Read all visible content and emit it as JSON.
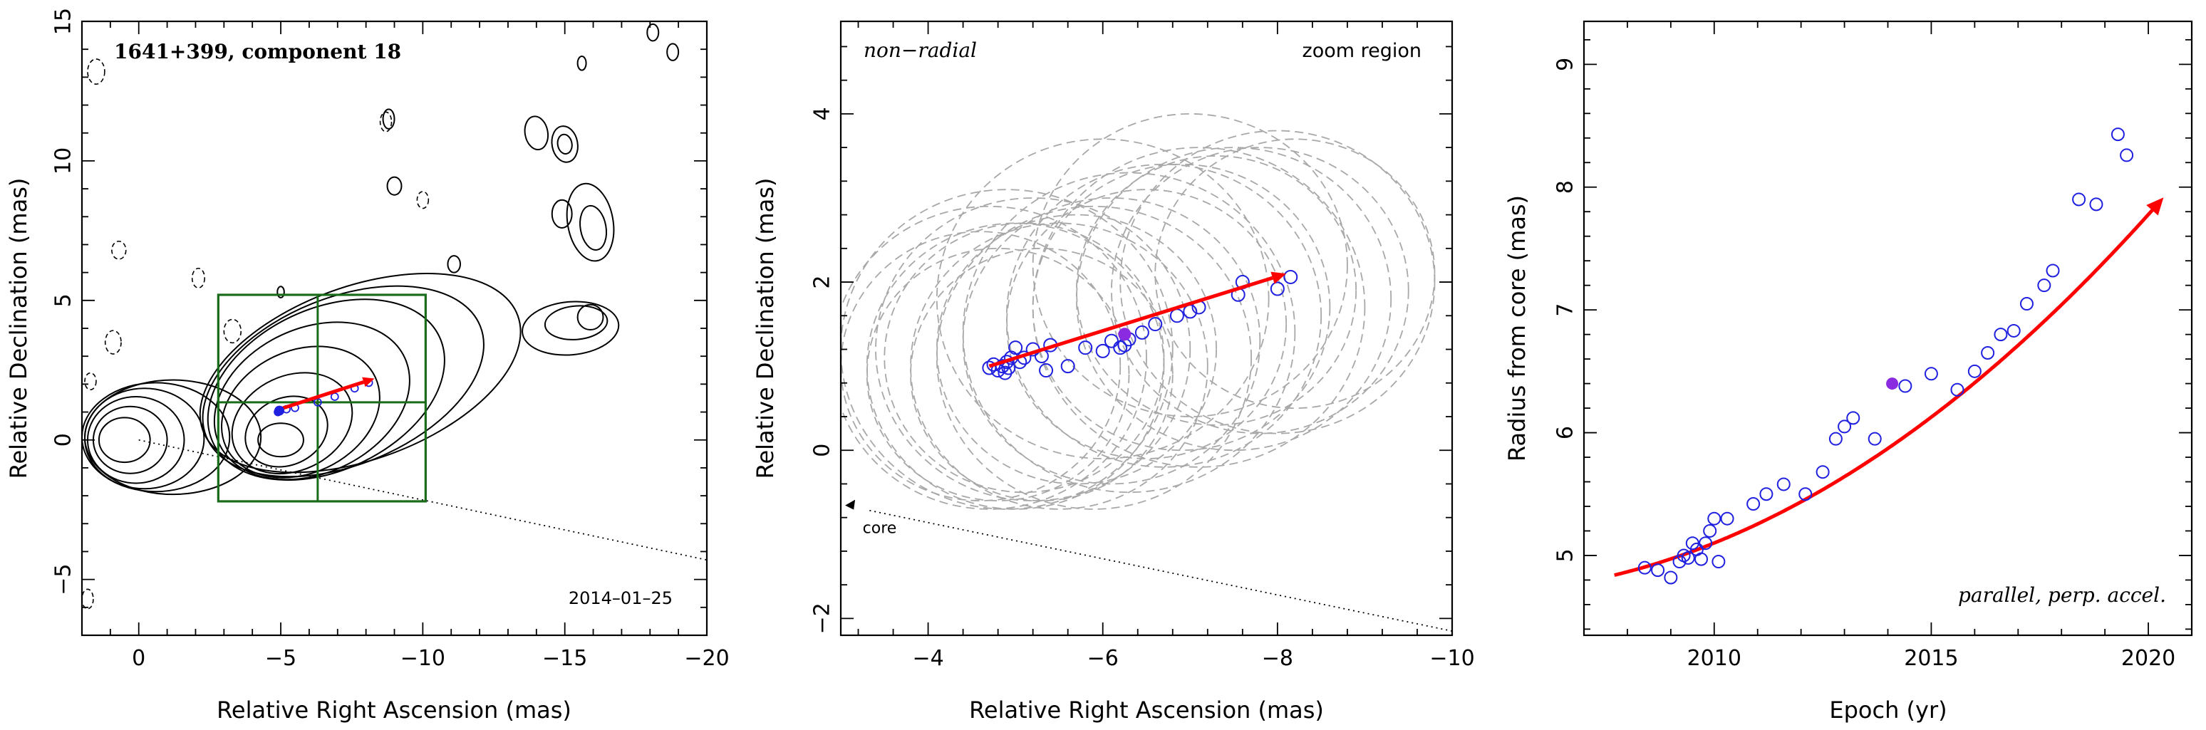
{
  "chart_data": [
    {
      "type": "contour",
      "title": "1641+399, component 18",
      "annotation": "2014–01–25",
      "xlabel": "Relative Right Ascension (mas)",
      "ylabel": "Relative Declination (mas)",
      "xlim": [
        2,
        -20
      ],
      "ylim": [
        -7,
        15
      ],
      "xticks": [
        0,
        -5,
        -10,
        -15,
        -20
      ],
      "xtick_labels": [
        "0",
        "−5",
        "−10",
        "−15",
        "−20"
      ],
      "yticks": [
        -5,
        0,
        5,
        10,
        15
      ],
      "ytick_labels": [
        "−5",
        "0",
        "5",
        "10",
        "15"
      ],
      "zoom_box": {
        "x": [
          -2.8,
          -10.1
        ],
        "y": [
          -2.2,
          5.2
        ],
        "dividers_x": [
          -6.3
        ],
        "dividers_y": [
          1.35
        ]
      },
      "direction_line": {
        "from": [
          0,
          0
        ],
        "slope": 0.215,
        "style": "dotted"
      },
      "motion_arrow": {
        "from": [
          -4.8,
          1.05
        ],
        "to": [
          -8.3,
          2.2
        ],
        "color": "#ff0000"
      },
      "component_points": [
        [
          -4.9,
          1.0
        ],
        [
          -5.2,
          1.1
        ],
        [
          -5.5,
          1.15
        ],
        [
          -6.3,
          1.35
        ],
        [
          -6.9,
          1.55
        ],
        [
          -7.6,
          1.85
        ],
        [
          -8.1,
          2.05
        ]
      ],
      "highlight_point": [
        -6.3,
        1.35
      ],
      "contours": [
        {
          "cx": 0.5,
          "cy": 0,
          "rx": 0.9,
          "ry": 0.8,
          "rot": 0
        },
        {
          "cx": 0.3,
          "cy": 0,
          "rx": 1.3,
          "ry": 1.2,
          "rot": 0
        },
        {
          "cx": 0.1,
          "cy": 0,
          "rx": 1.7,
          "ry": 1.55,
          "rot": 0
        },
        {
          "cx": -0.2,
          "cy": 0.05,
          "rx": 2.1,
          "ry": 1.8,
          "rot": 0
        },
        {
          "cx": -0.6,
          "cy": 0.1,
          "rx": 2.6,
          "ry": 1.95,
          "rot": 0
        },
        {
          "cx": -1.2,
          "cy": 0.1,
          "rx": 3.1,
          "ry": 2.05,
          "rot": 0
        },
        {
          "cx": -5.0,
          "cy": 0.0,
          "rx": 0.8,
          "ry": 0.6,
          "rot": 0
        },
        {
          "cx": -5.2,
          "cy": 0.3,
          "rx": 1.5,
          "ry": 1.2,
          "rot": 25
        },
        {
          "cx": -5.4,
          "cy": 0.6,
          "rx": 2.2,
          "ry": 1.7,
          "rot": 25
        },
        {
          "cx": -5.7,
          "cy": 1.0,
          "rx": 2.9,
          "ry": 2.2,
          "rot": 25
        },
        {
          "cx": -6.1,
          "cy": 1.4,
          "rx": 3.6,
          "ry": 2.6,
          "rot": 25
        },
        {
          "cx": -6.6,
          "cy": 1.8,
          "rx": 4.4,
          "ry": 2.9,
          "rot": 25
        },
        {
          "cx": -7.2,
          "cy": 2.1,
          "rx": 5.2,
          "ry": 3.0,
          "rot": 22
        },
        {
          "cx": -7.8,
          "cy": 2.4,
          "rx": 5.9,
          "ry": 3.1,
          "rot": 20
        },
        {
          "cx": -14.0,
          "cy": 11.0,
          "rx": 0.4,
          "ry": 0.6,
          "rot": 10
        },
        {
          "cx": -15.0,
          "cy": 10.6,
          "rx": 0.45,
          "ry": 0.65,
          "rot": 10
        },
        {
          "cx": -15.0,
          "cy": 10.6,
          "rx": 0.25,
          "ry": 0.35,
          "rot": 10
        },
        {
          "cx": -14.9,
          "cy": 8.1,
          "rx": 0.35,
          "ry": 0.5,
          "rot": 0
        },
        {
          "cx": -15.9,
          "cy": 7.8,
          "rx": 0.8,
          "ry": 1.4,
          "rot": 10
        },
        {
          "cx": -16.0,
          "cy": 7.6,
          "rx": 0.45,
          "ry": 0.8,
          "rot": 10
        },
        {
          "cx": -15.9,
          "cy": 4.4,
          "rx": 0.45,
          "ry": 0.45,
          "rot": 0
        },
        {
          "cx": -15.4,
          "cy": 4.2,
          "rx": 1.1,
          "ry": 0.6,
          "rot": 5
        },
        {
          "cx": -15.2,
          "cy": 4.0,
          "rx": 1.7,
          "ry": 0.95,
          "rot": 5
        },
        {
          "cx": -15.6,
          "cy": 13.5,
          "rx": 0.15,
          "ry": 0.25,
          "rot": 0
        },
        {
          "cx": -18.1,
          "cy": 14.6,
          "rx": 0.2,
          "ry": 0.3,
          "rot": 0
        },
        {
          "cx": -18.8,
          "cy": 13.9,
          "rx": 0.2,
          "ry": 0.3,
          "rot": 0
        },
        {
          "cx": -9.0,
          "cy": 9.1,
          "rx": 0.25,
          "ry": 0.32,
          "rot": 0
        },
        {
          "cx": -11.1,
          "cy": 6.3,
          "rx": 0.22,
          "ry": 0.3,
          "rot": 0
        },
        {
          "cx": -8.8,
          "cy": 11.5,
          "rx": 0.2,
          "ry": 0.35,
          "rot": 0
        },
        {
          "cx": -5.0,
          "cy": 5.3,
          "rx": 0.12,
          "ry": 0.2,
          "rot": 0
        }
      ],
      "negative_contours": [
        {
          "cx": 1.5,
          "cy": 13.2,
          "rx": 0.3,
          "ry": 0.45
        },
        {
          "cx": 0.7,
          "cy": 6.8,
          "rx": 0.25,
          "ry": 0.32
        },
        {
          "cx": 0.9,
          "cy": 3.5,
          "rx": 0.28,
          "ry": 0.42
        },
        {
          "cx": 1.7,
          "cy": 2.1,
          "rx": 0.2,
          "ry": 0.3
        },
        {
          "cx": -2.1,
          "cy": 5.8,
          "rx": 0.22,
          "ry": 0.35
        },
        {
          "cx": -3.3,
          "cy": 3.9,
          "rx": 0.3,
          "ry": 0.42
        },
        {
          "cx": -10.0,
          "cy": 8.6,
          "rx": 0.2,
          "ry": 0.3
        },
        {
          "cx": -8.7,
          "cy": 11.4,
          "rx": 0.2,
          "ry": 0.35
        },
        {
          "cx": 1.8,
          "cy": -5.7,
          "rx": 0.2,
          "ry": 0.35
        }
      ]
    },
    {
      "type": "scatter",
      "title": "zoom region",
      "label_left": "non−radial",
      "core_label": "core",
      "xlabel": "Relative Right Ascension (mas)",
      "ylabel": "Relative Declination (mas)",
      "xlim": [
        -3,
        -10
      ],
      "ylim": [
        -2.2,
        5.1
      ],
      "xticks": [
        -4,
        -6,
        -8,
        -10
      ],
      "xtick_labels": [
        "−4",
        "−6",
        "−8",
        "−10"
      ],
      "yticks": [
        -2,
        0,
        2,
        4
      ],
      "ytick_labels": [
        "−2",
        "0",
        "2",
        "4"
      ],
      "direction_line": {
        "slope": 0.215,
        "style": "dotted"
      },
      "motion_arrow": {
        "from": [
          -4.7,
          1.0
        ],
        "to": [
          -8.1,
          2.1
        ],
        "color": "#ff0000"
      },
      "highlight_point": [
        -6.25,
        1.38
      ],
      "points_x": [
        -4.7,
        -4.75,
        -4.8,
        -4.85,
        -4.88,
        -4.9,
        -4.92,
        -4.95,
        -5.0,
        -5.05,
        -5.1,
        -5.2,
        -5.3,
        -5.35,
        -5.4,
        -5.6,
        -5.8,
        -6.0,
        -6.1,
        -6.2,
        -6.25,
        -6.3,
        -6.45,
        -6.6,
        -6.85,
        -7.0,
        -7.1,
        -7.55,
        -7.6,
        -8.0,
        -8.15
      ],
      "points_y": [
        0.98,
        1.02,
        0.95,
        1.0,
        0.92,
        1.05,
        0.98,
        1.1,
        1.22,
        1.05,
        1.1,
        1.2,
        1.12,
        0.95,
        1.25,
        1.0,
        1.22,
        1.18,
        1.3,
        1.22,
        1.25,
        1.32,
        1.4,
        1.5,
        1.6,
        1.65,
        1.7,
        1.85,
        2.0,
        1.92,
        2.06
      ],
      "error_circles": [
        {
          "x": -4.6,
          "y": 1.0,
          "r": 1.6
        },
        {
          "x": -4.7,
          "y": 1.1,
          "r": 1.8
        },
        {
          "x": -4.8,
          "y": 0.9,
          "r": 1.5
        },
        {
          "x": -4.9,
          "y": 1.2,
          "r": 1.9
        },
        {
          "x": -5.0,
          "y": 1.0,
          "r": 1.7
        },
        {
          "x": -5.1,
          "y": 1.1,
          "r": 1.6
        },
        {
          "x": -5.2,
          "y": 1.2,
          "r": 1.8
        },
        {
          "x": -5.3,
          "y": 0.9,
          "r": 1.5
        },
        {
          "x": -5.5,
          "y": 1.0,
          "r": 1.7
        },
        {
          "x": -5.7,
          "y": 1.2,
          "r": 1.6
        },
        {
          "x": -5.9,
          "y": 1.1,
          "r": 1.8
        },
        {
          "x": -6.1,
          "y": 1.3,
          "r": 1.7
        },
        {
          "x": -6.3,
          "y": 1.4,
          "r": 1.9
        },
        {
          "x": -6.5,
          "y": 1.5,
          "r": 1.6
        },
        {
          "x": -6.7,
          "y": 1.6,
          "r": 1.8
        },
        {
          "x": -6.9,
          "y": 1.7,
          "r": 1.7
        },
        {
          "x": -7.1,
          "y": 1.7,
          "r": 1.9
        },
        {
          "x": -7.3,
          "y": 1.9,
          "r": 1.6
        },
        {
          "x": -7.5,
          "y": 1.8,
          "r": 1.8
        },
        {
          "x": -7.8,
          "y": 1.9,
          "r": 1.7
        },
        {
          "x": -8.0,
          "y": 2.0,
          "r": 1.8
        },
        {
          "x": -8.2,
          "y": 2.1,
          "r": 1.6
        },
        {
          "x": -6.0,
          "y": 1.8,
          "r": 1.9
        },
        {
          "x": -7.0,
          "y": 2.2,
          "r": 1.8
        }
      ]
    },
    {
      "type": "scatter",
      "annotation": "parallel, perp. accel.",
      "xlabel": "Epoch (yr)",
      "ylabel": "Radius from core (mas)",
      "xlim": [
        2007,
        2021
      ],
      "ylim": [
        4.35,
        9.35
      ],
      "xticks": [
        2010,
        2015,
        2020
      ],
      "xtick_labels": [
        "2010",
        "2015",
        "2020"
      ],
      "yticks": [
        5,
        6,
        7,
        8,
        9
      ],
      "ytick_labels": [
        "5",
        "6",
        "7",
        "8",
        "9"
      ],
      "fit_curve": {
        "type": "quadratic",
        "x0": 2007.7,
        "a": 0.0125,
        "b": 0.085,
        "c": 4.84,
        "x_end": 2020.1,
        "color": "#ff0000"
      },
      "highlight_point": [
        2014.1,
        6.4
      ],
      "points_x": [
        2008.4,
        2008.7,
        2009.0,
        2009.2,
        2009.3,
        2009.4,
        2009.5,
        2009.6,
        2009.7,
        2009.8,
        2009.9,
        2010.0,
        2010.1,
        2010.3,
        2010.9,
        2011.2,
        2011.6,
        2012.1,
        2012.5,
        2012.8,
        2013.0,
        2013.2,
        2013.7,
        2014.4,
        2015.0,
        2015.6,
        2016.0,
        2016.3,
        2016.6,
        2016.9,
        2017.2,
        2017.6,
        2017.8,
        2018.4,
        2018.8,
        2019.3,
        2019.5
      ],
      "points_y": [
        4.9,
        4.88,
        4.82,
        4.95,
        5.0,
        4.98,
        5.1,
        5.05,
        4.97,
        5.1,
        5.2,
        5.3,
        4.95,
        5.3,
        5.42,
        5.5,
        5.58,
        5.5,
        5.68,
        5.95,
        6.05,
        6.12,
        5.95,
        6.38,
        6.48,
        6.35,
        6.5,
        6.65,
        6.8,
        6.83,
        7.05,
        7.2,
        7.32,
        7.9,
        7.86,
        8.43,
        8.26
      ]
    }
  ],
  "colors": {
    "axis": "#000000",
    "contour": "#000000",
    "zoom_box": "#1a6b1a",
    "arrow": "#ff0000",
    "points": "#2020e0",
    "highlight": "#8a2be2",
    "error_circles": "#a8a8a8"
  }
}
